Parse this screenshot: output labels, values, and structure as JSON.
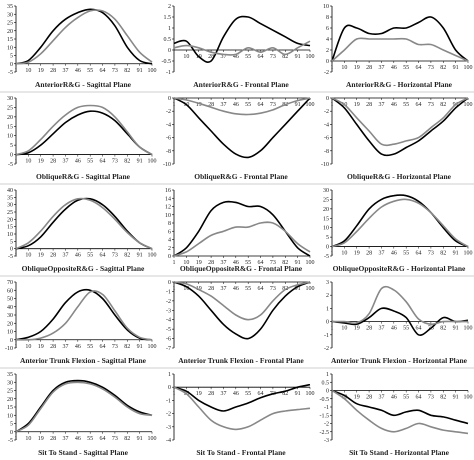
{
  "chart_data": [
    {
      "type": "line",
      "title": "AnteriorR&G - Sagittal Plane",
      "ylim": [
        -5,
        35
      ],
      "yticks": [
        -5,
        0,
        5,
        10,
        15,
        20,
        25,
        30,
        35
      ],
      "xticks": [
        1,
        10,
        19,
        28,
        37,
        46,
        55,
        64,
        73,
        82,
        91,
        100
      ],
      "x": [
        1,
        10,
        19,
        28,
        37,
        46,
        55,
        64,
        73,
        82,
        91,
        100
      ],
      "series": [
        {
          "color": "#000000",
          "values": [
            0,
            2,
            10,
            20,
            27,
            31,
            33,
            31,
            23,
            10,
            2,
            0
          ]
        },
        {
          "color": "#888888",
          "values": [
            0,
            1,
            6,
            14,
            22,
            28,
            32,
            32,
            27,
            17,
            7,
            1
          ]
        }
      ]
    },
    {
      "type": "line",
      "title": "AnteriorR&G - Frontal Plane",
      "ylim": [
        -1,
        2
      ],
      "yticks": [
        -1,
        -0.5,
        0,
        0.5,
        1,
        1.5,
        2
      ],
      "xticks": [
        10,
        19,
        28,
        37,
        46,
        55,
        64,
        73,
        82,
        91,
        100
      ],
      "x": [
        1,
        10,
        19,
        28,
        37,
        46,
        55,
        64,
        73,
        82,
        91,
        100
      ],
      "series": [
        {
          "color": "#000000",
          "values": [
            0.3,
            0.4,
            -0.3,
            -0.5,
            0.6,
            1.4,
            1.5,
            1.2,
            0.9,
            0.6,
            0.3,
            0.2
          ]
        },
        {
          "color": "#888888",
          "values": [
            0.1,
            0.2,
            0.1,
            -0.1,
            -0.2,
            -0.2,
            0.1,
            -0.1,
            0.1,
            -0.2,
            0.1,
            0.4
          ]
        }
      ]
    },
    {
      "type": "line",
      "title": "AnteriorR&G - Horizontal Plane",
      "ylim": [
        -2,
        10
      ],
      "yticks": [
        -2,
        0,
        2,
        4,
        6,
        8,
        10
      ],
      "xticks": [
        1,
        10,
        19,
        28,
        37,
        46,
        55,
        64,
        73,
        82,
        91,
        100
      ],
      "x": [
        1,
        10,
        19,
        28,
        37,
        46,
        55,
        64,
        73,
        82,
        91,
        100
      ],
      "series": [
        {
          "color": "#000000",
          "values": [
            0,
            6,
            6,
            5,
            5,
            6,
            6,
            7,
            8,
            6,
            2,
            0
          ]
        },
        {
          "color": "#888888",
          "values": [
            0,
            2,
            4,
            4,
            4,
            4,
            4,
            3,
            3,
            2,
            1,
            0
          ]
        }
      ]
    },
    {
      "type": "line",
      "title": "ObliqueR&G - Sagittal Plane",
      "ylim": [
        -5,
        30
      ],
      "yticks": [
        -5,
        0,
        5,
        10,
        15,
        20,
        25,
        30
      ],
      "xticks": [
        1,
        10,
        19,
        28,
        37,
        46,
        55,
        64,
        73,
        82,
        91,
        100
      ],
      "x": [
        1,
        10,
        19,
        28,
        37,
        46,
        55,
        64,
        73,
        82,
        91,
        100
      ],
      "series": [
        {
          "color": "#000000",
          "values": [
            0,
            1,
            5,
            11,
            17,
            21,
            23,
            22,
            18,
            11,
            4,
            0
          ]
        },
        {
          "color": "#888888",
          "values": [
            0,
            2,
            8,
            15,
            21,
            25,
            26,
            25,
            20,
            12,
            4,
            0
          ]
        }
      ]
    },
    {
      "type": "line",
      "title": "ObliqueR&G - Frontal Plane",
      "ylim": [
        -10,
        0
      ],
      "yticks": [
        -10,
        -8,
        -6,
        -4,
        -2,
        0
      ],
      "xticks": [
        1,
        10,
        19,
        28,
        37,
        46,
        55,
        64,
        73,
        82,
        91,
        100
      ],
      "x": [
        1,
        10,
        19,
        28,
        37,
        46,
        55,
        64,
        73,
        82,
        91,
        100
      ],
      "series": [
        {
          "color": "#000000",
          "values": [
            0,
            -1,
            -3,
            -5,
            -7,
            -8.5,
            -9,
            -8,
            -6,
            -4,
            -2,
            0
          ]
        },
        {
          "color": "#888888",
          "values": [
            0,
            -0.3,
            -0.8,
            -1.4,
            -2,
            -2.4,
            -2.5,
            -2.3,
            -1.8,
            -1,
            -0.4,
            0
          ]
        }
      ]
    },
    {
      "type": "line",
      "title": "ObliqueR&G - Horizontal Plane",
      "ylim": [
        -10,
        0
      ],
      "yticks": [
        -10,
        -8,
        -6,
        -4,
        -2,
        0
      ],
      "xticks": [
        1,
        10,
        19,
        28,
        37,
        46,
        55,
        64,
        73,
        82,
        91,
        100
      ],
      "x": [
        1,
        10,
        19,
        28,
        37,
        46,
        55,
        64,
        73,
        82,
        91,
        100
      ],
      "series": [
        {
          "color": "#000000",
          "values": [
            0,
            -1.5,
            -4,
            -6.5,
            -8.5,
            -8.5,
            -7.5,
            -6.5,
            -5,
            -3.5,
            -1.5,
            0
          ]
        },
        {
          "color": "#888888",
          "values": [
            0,
            -1,
            -3,
            -5,
            -7,
            -7,
            -6.5,
            -6,
            -4.5,
            -3,
            -1,
            0
          ]
        }
      ]
    },
    {
      "type": "line",
      "title": "ObliqueOppositeR&G - Sagittal Plane",
      "ylim": [
        -5,
        40
      ],
      "yticks": [
        -5,
        0,
        5,
        10,
        15,
        20,
        25,
        30,
        35,
        40
      ],
      "xticks": [
        1,
        10,
        19,
        28,
        37,
        46,
        55,
        64,
        73,
        82,
        91,
        100
      ],
      "x": [
        1,
        10,
        19,
        28,
        37,
        46,
        55,
        64,
        73,
        82,
        91,
        100
      ],
      "series": [
        {
          "color": "#000000",
          "values": [
            0,
            2,
            8,
            18,
            27,
            33,
            34,
            30,
            22,
            12,
            4,
            0
          ]
        },
        {
          "color": "#888888",
          "values": [
            0,
            4,
            12,
            22,
            30,
            34,
            33,
            28,
            20,
            11,
            4,
            0
          ]
        }
      ]
    },
    {
      "type": "line",
      "title": "ObliqueOppositeR&G - Frontal Plane",
      "ylim": [
        0,
        16
      ],
      "yticks": [
        0,
        2,
        4,
        6,
        8,
        10,
        12,
        14,
        16
      ],
      "xticks": [
        1,
        10,
        19,
        28,
        37,
        46,
        55,
        64,
        73,
        82,
        91,
        100
      ],
      "x": [
        1,
        10,
        19,
        28,
        37,
        46,
        55,
        64,
        73,
        82,
        91,
        100
      ],
      "series": [
        {
          "color": "#000000",
          "values": [
            0,
            2,
            6,
            11,
            13,
            13,
            12,
            12,
            10,
            6,
            2,
            0
          ]
        },
        {
          "color": "#888888",
          "values": [
            0,
            1,
            3,
            5,
            6,
            7,
            7,
            8,
            8,
            6,
            3,
            1
          ]
        }
      ]
    },
    {
      "type": "line",
      "title": "ObliqueOppositeR&G - Horizontal Plane",
      "ylim": [
        -5,
        30
      ],
      "yticks": [
        -5,
        0,
        5,
        10,
        15,
        20,
        25,
        30
      ],
      "xticks": [
        1,
        10,
        19,
        28,
        37,
        46,
        55,
        64,
        73,
        82,
        91,
        100
      ],
      "x": [
        1,
        10,
        19,
        28,
        37,
        46,
        55,
        64,
        73,
        82,
        91,
        100
      ],
      "series": [
        {
          "color": "#000000",
          "values": [
            0,
            3,
            11,
            20,
            25,
            27,
            27,
            24,
            18,
            10,
            3,
            0
          ]
        },
        {
          "color": "#888888",
          "values": [
            0,
            2,
            8,
            15,
            21,
            24,
            25,
            23,
            18,
            11,
            4,
            0
          ]
        }
      ]
    },
    {
      "type": "line",
      "title": "Anterior Trunk Flexion - Sagittal Plane",
      "ylim": [
        -10,
        70
      ],
      "yticks": [
        -10,
        0,
        10,
        20,
        30,
        40,
        50,
        60,
        70
      ],
      "xticks": [
        1,
        10,
        19,
        28,
        37,
        46,
        55,
        64,
        73,
        82,
        91,
        100
      ],
      "x": [
        1,
        10,
        19,
        28,
        37,
        46,
        55,
        64,
        73,
        82,
        91,
        100
      ],
      "series": [
        {
          "color": "#000000",
          "values": [
            0,
            3,
            10,
            25,
            45,
            58,
            60,
            50,
            30,
            12,
            2,
            0
          ]
        },
        {
          "color": "#888888",
          "values": [
            0,
            0,
            2,
            8,
            20,
            40,
            58,
            55,
            35,
            14,
            3,
            0
          ]
        }
      ]
    },
    {
      "type": "line",
      "title": "Anterior Trunk Flexion - Frontal Plane",
      "ylim": [
        -7,
        0
      ],
      "yticks": [
        -7,
        -6,
        -5,
        -4,
        -3,
        -2,
        -1,
        0
      ],
      "xticks": [
        1,
        10,
        19,
        28,
        37,
        46,
        55,
        64,
        73,
        82,
        91,
        100
      ],
      "x": [
        1,
        10,
        19,
        28,
        37,
        46,
        55,
        64,
        73,
        82,
        91,
        100
      ],
      "series": [
        {
          "color": "#000000",
          "values": [
            0,
            -0.5,
            -1.5,
            -3,
            -4.5,
            -5.5,
            -6,
            -5,
            -3,
            -1.5,
            -0.5,
            0
          ]
        },
        {
          "color": "#888888",
          "values": [
            0,
            -0.2,
            -0.8,
            -1.5,
            -2.5,
            -3.5,
            -4,
            -3.5,
            -2,
            -0.8,
            -0.3,
            0
          ]
        }
      ]
    },
    {
      "type": "line",
      "title": "Anterior Trunk Flexion - Horizontal Plane",
      "ylim": [
        -2,
        3
      ],
      "yticks": [
        -2,
        -1,
        0,
        1,
        2,
        3
      ],
      "xticks": [
        1,
        10,
        19,
        28,
        37,
        46,
        55,
        64,
        73,
        82,
        91,
        100
      ],
      "x": [
        1,
        10,
        19,
        28,
        37,
        46,
        55,
        64,
        73,
        82,
        91,
        100
      ],
      "series": [
        {
          "color": "#000000",
          "values": [
            0,
            -0.1,
            -0.2,
            0.3,
            1,
            0.8,
            0.3,
            -1,
            -0.5,
            0.3,
            0,
            0.1
          ]
        },
        {
          "color": "#888888",
          "values": [
            0,
            0,
            -0.1,
            0.6,
            2.5,
            2.4,
            1.5,
            0.2,
            -0.2,
            0,
            0,
            0
          ]
        }
      ]
    },
    {
      "type": "line",
      "title": "Sit To Stand - Sagittal Plane",
      "ylim": [
        -5,
        35
      ],
      "yticks": [
        -5,
        0,
        5,
        10,
        15,
        20,
        25,
        30,
        35
      ],
      "xticks": [
        1,
        10,
        19,
        28,
        37,
        46,
        55,
        64,
        73,
        82,
        91,
        100
      ],
      "x": [
        1,
        10,
        19,
        28,
        37,
        46,
        55,
        64,
        73,
        82,
        91,
        100
      ],
      "series": [
        {
          "color": "#000000",
          "values": [
            0,
            5,
            15,
            25,
            30,
            31,
            30,
            27,
            22,
            16,
            12,
            10
          ]
        },
        {
          "color": "#888888",
          "values": [
            0,
            4,
            14,
            24,
            29,
            30,
            29,
            26,
            21,
            15,
            11,
            10
          ]
        }
      ]
    },
    {
      "type": "line",
      "title": "Sit To Stand - Frontal Plane",
      "ylim": [
        -4,
        1
      ],
      "yticks": [
        -4,
        -3,
        -2,
        -1,
        0,
        1
      ],
      "xticks": [
        1,
        10,
        19,
        28,
        37,
        46,
        55,
        64,
        73,
        82,
        91,
        100
      ],
      "x": [
        1,
        10,
        19,
        28,
        37,
        46,
        55,
        64,
        73,
        82,
        91,
        100
      ],
      "series": [
        {
          "color": "#000000",
          "values": [
            0,
            -0.3,
            -1,
            -1.5,
            -1.8,
            -1.5,
            -1.2,
            -0.8,
            -0.5,
            -0.3,
            0,
            0.2
          ]
        },
        {
          "color": "#888888",
          "values": [
            0,
            -0.5,
            -1.5,
            -2.5,
            -3,
            -3.2,
            -3,
            -2.5,
            -2,
            -1.8,
            -1.7,
            -1.6
          ]
        }
      ]
    },
    {
      "type": "line",
      "title": "Sit To Stand - Horizontal Plane",
      "ylim": [
        -3,
        1
      ],
      "yticks": [
        -3,
        -2.5,
        -2,
        -1.5,
        -1,
        -0.5,
        0,
        0.5,
        1
      ],
      "xticks": [
        1,
        10,
        19,
        28,
        37,
        46,
        55,
        64,
        73,
        82,
        91,
        100
      ],
      "x": [
        1,
        10,
        19,
        28,
        37,
        46,
        55,
        64,
        73,
        82,
        91,
        100
      ],
      "series": [
        {
          "color": "#000000",
          "values": [
            0,
            -0.3,
            -0.8,
            -1,
            -1.2,
            -1.5,
            -1.3,
            -1.2,
            -1.5,
            -1.6,
            -1.8,
            -2
          ]
        },
        {
          "color": "#888888",
          "values": [
            0,
            -0.5,
            -1.2,
            -1.8,
            -2.3,
            -2.5,
            -2.3,
            -2,
            -2.2,
            -2.4,
            -2.5,
            -2.6
          ]
        }
      ]
    }
  ]
}
